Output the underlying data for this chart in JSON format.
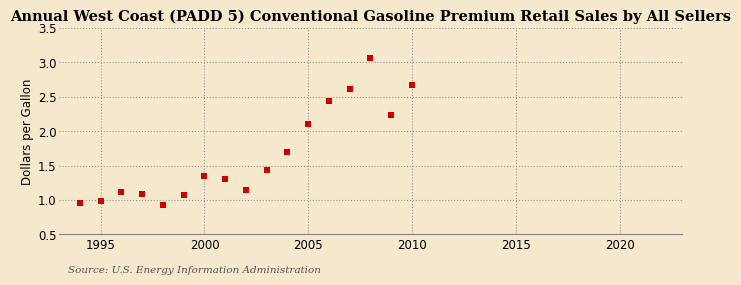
{
  "title": "Annual West Coast (PADD 5) Conventional Gasoline Premium Retail Sales by All Sellers",
  "ylabel": "Dollars per Gallon",
  "source": "Source: U.S. Energy Information Administration",
  "background_color": "#f5e8cc",
  "years": [
    1994,
    1995,
    1996,
    1997,
    1998,
    1999,
    2000,
    2001,
    2002,
    2003,
    2004,
    2005,
    2006,
    2007,
    2008,
    2009,
    2010
  ],
  "values": [
    0.96,
    0.98,
    1.11,
    1.09,
    0.93,
    1.07,
    1.35,
    1.3,
    1.15,
    1.43,
    1.7,
    2.11,
    2.44,
    2.62,
    3.07,
    2.24,
    2.67
  ],
  "marker_color": "#cc0000",
  "marker_size": 22,
  "xlim": [
    1993,
    2023
  ],
  "ylim": [
    0.5,
    3.5
  ],
  "xticks": [
    1995,
    2000,
    2005,
    2010,
    2015,
    2020
  ],
  "yticks": [
    0.5,
    1.0,
    1.5,
    2.0,
    2.5,
    3.0,
    3.5
  ],
  "grid_color": "#999999",
  "title_fontsize": 10.5,
  "label_fontsize": 8.5,
  "tick_fontsize": 8.5,
  "source_fontsize": 7.5
}
